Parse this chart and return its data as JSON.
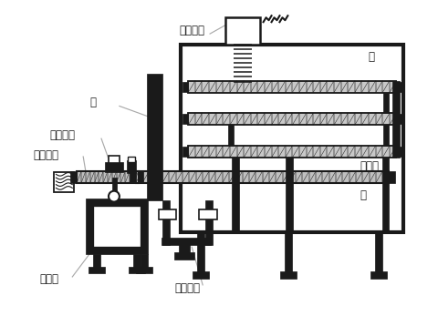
{
  "bg": "#ffffff",
  "lc": "#1a1a1a",
  "labels": {
    "cylinder": "シリンダ",
    "furnace": "炉",
    "door": "扇",
    "slider": "スライダ",
    "conveyor": "コンベア",
    "screw_axis": "ネジ軸",
    "shelf": "棚",
    "motor": "モータ",
    "bridge": "ブリッジ"
  }
}
